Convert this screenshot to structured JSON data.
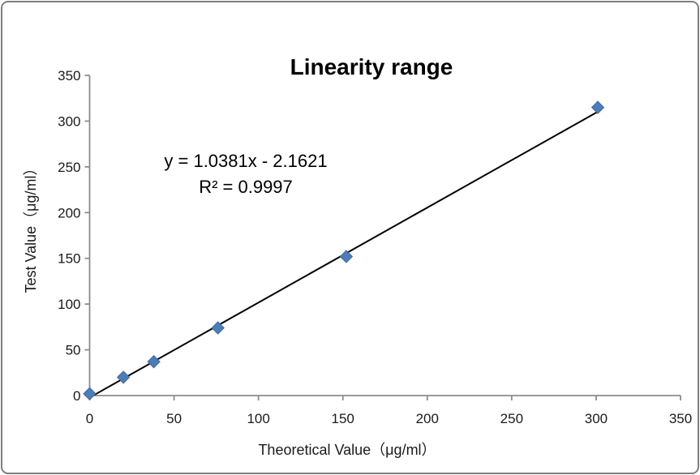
{
  "chart_data": {
    "type": "scatter",
    "title": "Linearity range",
    "xlabel": "Theoretical Value（μg/ml）",
    "ylabel": "Test Value（μg/ml）",
    "xlim": [
      0,
      350
    ],
    "ylim": [
      0,
      350
    ],
    "xticks": [
      0,
      50,
      100,
      150,
      200,
      250,
      300,
      350
    ],
    "yticks": [
      0,
      50,
      100,
      150,
      200,
      250,
      300,
      350
    ],
    "grid": false,
    "legend": "none",
    "series": [
      {
        "name": "Test Value",
        "points": [
          {
            "x": 0,
            "y": 2
          },
          {
            "x": 20,
            "y": 20
          },
          {
            "x": 38,
            "y": 37
          },
          {
            "x": 76,
            "y": 74
          },
          {
            "x": 152,
            "y": 152
          },
          {
            "x": 301,
            "y": 315
          }
        ]
      }
    ],
    "trendline": {
      "slope": 1.0381,
      "intercept": -2.1621,
      "x_start": 0,
      "x_end": 303,
      "equation_label": "y = 1.0381x - 2.1621",
      "r_squared_label": "R² = 0.9997"
    },
    "colors": {
      "marker_fill": "#4c7dbb",
      "marker_border": "#3f699e",
      "trendline": "#000000",
      "axis": "#8c8c8c",
      "tick_label": "#1a1a1a",
      "frame_border": "#7f7f7f"
    }
  }
}
